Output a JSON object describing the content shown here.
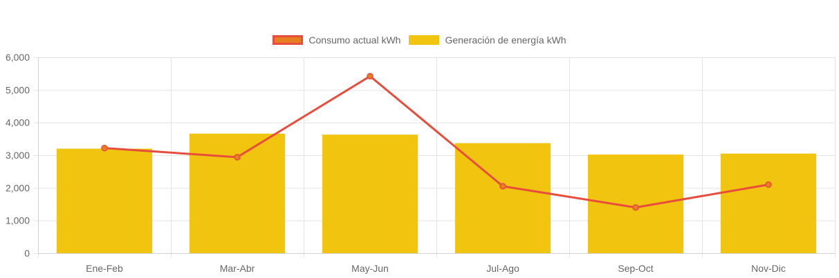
{
  "chart_data": {
    "type": "bar",
    "categories": [
      "Ene-Feb",
      "Mar-Abr",
      "May-Jun",
      "Jul-Ago",
      "Sep-Oct",
      "Nov-Dic"
    ],
    "ylim": [
      0,
      6000
    ],
    "yticks": [
      0,
      1000,
      2000,
      3000,
      4000,
      5000,
      6000
    ],
    "ytick_labels": [
      "0",
      "1,000",
      "2,000",
      "3,000",
      "4,000",
      "5,000",
      "6,000"
    ],
    "grid": true,
    "legend_position": "top-center",
    "series": [
      {
        "name": "Consumo actual kWh",
        "type": "line",
        "values": [
          3220,
          2940,
          5420,
          2050,
          1400,
          2100
        ],
        "color": "#e74c3c",
        "fill_color": "#e67e22"
      },
      {
        "name": "Generación de energía kWh",
        "type": "bar",
        "values": [
          3200,
          3660,
          3630,
          3370,
          3020,
          3050
        ],
        "color": "#f1c40f"
      }
    ]
  }
}
